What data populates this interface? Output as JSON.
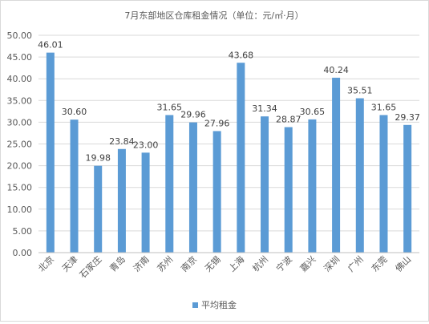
{
  "chart_data": {
    "type": "bar",
    "title": "7月东部地区仓库租金情况（单位：元/㎡·月）",
    "categories": [
      "北京",
      "天津",
      "石家庄",
      "青岛",
      "济南",
      "苏州",
      "南京",
      "无锡",
      "上海",
      "杭州",
      "宁波",
      "嘉兴",
      "深圳",
      "广州",
      "东莞",
      "佛山"
    ],
    "series": [
      {
        "name": "平均租金",
        "values": [
          46.01,
          30.6,
          19.98,
          23.84,
          23.0,
          31.65,
          29.96,
          27.96,
          43.68,
          31.34,
          28.87,
          30.65,
          40.24,
          35.51,
          31.65,
          29.37
        ]
      }
    ],
    "ylim": [
      0,
      50
    ],
    "yticks": [
      "0.00",
      "5.00",
      "10.00",
      "15.00",
      "20.00",
      "25.00",
      "30.00",
      "35.00",
      "40.00",
      "45.00",
      "50.00"
    ],
    "grid": true,
    "legend": "bottom",
    "bar_color": "#5b9bd5",
    "data_labels": [
      "46.01",
      "30.60",
      "19.98",
      "23.84",
      "23.00",
      "31.65",
      "29.96",
      "27.96",
      "43.68",
      "31.34",
      "28.87",
      "30.65",
      "40.24",
      "35.51",
      "31.65",
      "29.37"
    ]
  }
}
